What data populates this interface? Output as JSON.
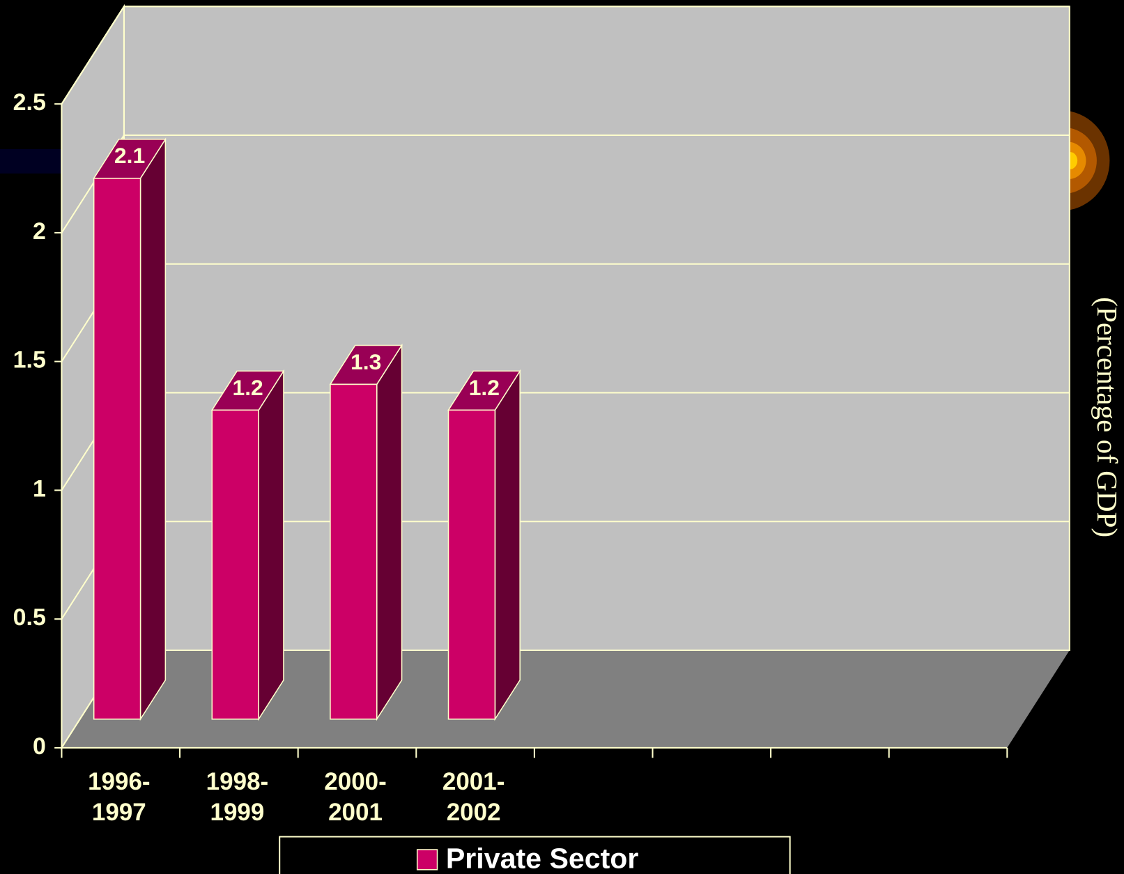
{
  "chart_data": {
    "type": "bar3d",
    "y_axis_label": "(Percentage of GDP)",
    "categories": [
      "1996-\n1997",
      "1998-\n1999",
      "2000-\n2001",
      "2001-\n2002",
      null,
      null,
      null,
      null
    ],
    "series": [
      {
        "name": "Private Sector",
        "color": "#cc0066",
        "values": [
          2.1,
          1.2,
          1.3,
          1.2,
          null,
          null,
          null,
          null
        ]
      }
    ],
    "ylim": [
      0,
      2.5
    ],
    "yticks": [
      0,
      0.5,
      1,
      1.5,
      2,
      2.5
    ],
    "grid": true,
    "legend": "bottom"
  }
}
